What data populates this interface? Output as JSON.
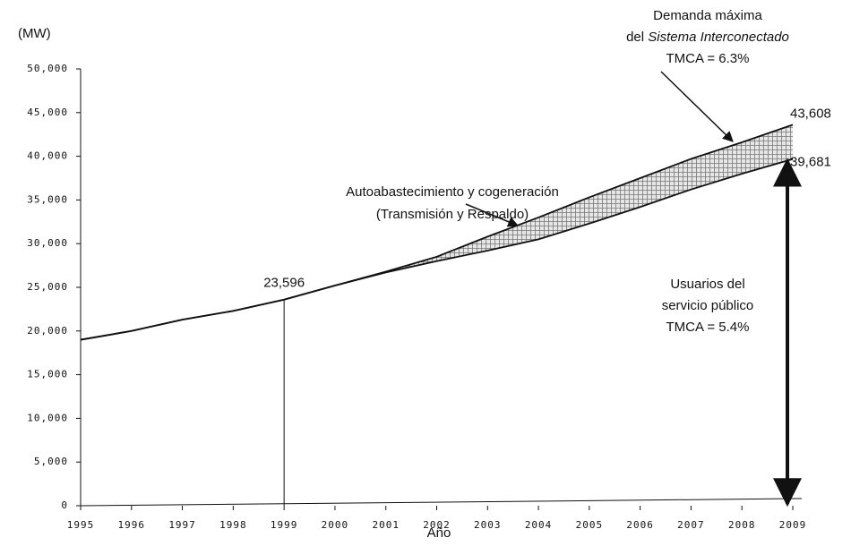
{
  "chart_data": {
    "type": "line",
    "y_label": "(MW)",
    "x_label": "Año",
    "x": [
      1995,
      1996,
      1997,
      1998,
      1999,
      2000,
      2001,
      2002,
      2003,
      2004,
      2005,
      2006,
      2007,
      2008,
      2009
    ],
    "xlim": [
      1995,
      2009
    ],
    "xticks": [
      1995,
      1996,
      1997,
      1998,
      1999,
      2000,
      2001,
      2002,
      2003,
      2004,
      2005,
      2006,
      2007,
      2008,
      2009
    ],
    "ylim": [
      0,
      50000
    ],
    "yticks": [
      0,
      {
        "value": 5000,
        "label": "5,000"
      },
      {
        "value": 10000,
        "label": "10,000"
      },
      {
        "value": 15000,
        "label": "15,000"
      },
      {
        "value": 20000,
        "label": "20,000"
      },
      {
        "value": 25000,
        "label": "25,000"
      },
      {
        "value": 30000,
        "label": "30,000"
      },
      {
        "value": 35000,
        "label": "35,000"
      },
      {
        "value": 40000,
        "label": "40,000"
      },
      {
        "value": 45000,
        "label": "45,000"
      },
      {
        "value": 50000,
        "label": "50,000"
      }
    ],
    "series": [
      {
        "color": "#111111",
        "values": [
          19000,
          20000,
          21300,
          22300,
          23596,
          25200,
          26800,
          28500,
          30800,
          33000,
          35300,
          37500,
          39700,
          41600,
          43608
        ],
        "value_labels": [
          null,
          null,
          null,
          null,
          "23,596",
          null,
          null,
          null,
          null,
          null,
          null,
          null,
          null,
          null,
          "43,608"
        ]
      },
      {
        "color": "#111111",
        "values": [
          19000,
          20000,
          21300,
          22300,
          23596,
          25200,
          26700,
          28000,
          29200,
          30500,
          32300,
          34200,
          36200,
          38000,
          39681
        ],
        "value_labels": [
          null,
          null,
          null,
          null,
          null,
          null,
          null,
          null,
          null,
          null,
          null,
          null,
          null,
          null,
          "39,681"
        ]
      }
    ],
    "annotations": [
      {
        "lines": [
          "Demanda máxima",
          "del",
          "Sistema Interconectado",
          "TMCA = 6.3%"
        ]
      },
      {
        "lines": [
          "Autoabastecimiento y cogeneración",
          "(Transmisión y Respaldo)"
        ]
      },
      {
        "lines": [
          "Usuarios del",
          "servicio público",
          "TMCA = 5.4%"
        ]
      }
    ]
  }
}
